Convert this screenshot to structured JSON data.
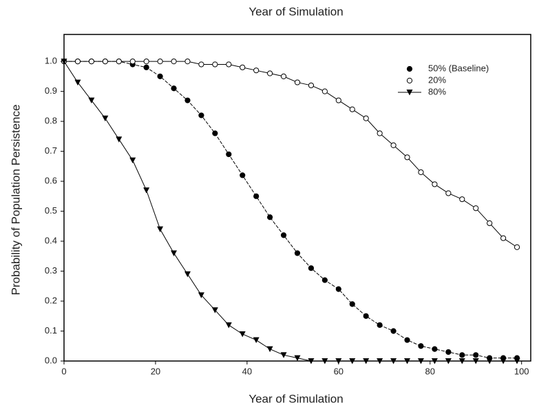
{
  "chart_data": {
    "type": "line",
    "title": "Year of Simulation",
    "x_label": "Year of Simulation",
    "y_label": "Probability of Population Persistence",
    "x": [
      0,
      3,
      6,
      9,
      12,
      15,
      18,
      21,
      24,
      27,
      30,
      33,
      36,
      39,
      42,
      45,
      48,
      51,
      54,
      57,
      60,
      63,
      66,
      69,
      72,
      75,
      78,
      81,
      84,
      87,
      90,
      93,
      96,
      99
    ],
    "series": [
      {
        "name": "50% (Baseline)",
        "color": "#000000",
        "marker": "circle-filled",
        "values": [
          1.0,
          1.0,
          1.0,
          1.0,
          1.0,
          0.99,
          0.98,
          0.95,
          0.91,
          0.87,
          0.82,
          0.76,
          0.69,
          0.62,
          0.55,
          0.48,
          0.42,
          0.36,
          0.31,
          0.27,
          0.24,
          0.19,
          0.15,
          0.12,
          0.1,
          0.07,
          0.05,
          0.04,
          0.03,
          0.02,
          0.02,
          0.01,
          0.01,
          0.01
        ]
      },
      {
        "name": "20%",
        "color": "#000000",
        "marker": "circle-open",
        "values": [
          1.0,
          1.0,
          1.0,
          1.0,
          1.0,
          1.0,
          1.0,
          1.0,
          1.0,
          1.0,
          0.99,
          0.99,
          0.99,
          0.98,
          0.97,
          0.96,
          0.95,
          0.93,
          0.92,
          0.9,
          0.87,
          0.84,
          0.81,
          0.76,
          0.72,
          0.68,
          0.63,
          0.59,
          0.56,
          0.54,
          0.51,
          0.46,
          0.41,
          0.38
        ]
      },
      {
        "name": "80%",
        "color": "#000000",
        "marker": "triangle-down",
        "values": [
          1.0,
          0.93,
          0.87,
          0.81,
          0.74,
          0.67,
          0.57,
          0.44,
          0.36,
          0.29,
          0.22,
          0.17,
          0.12,
          0.09,
          0.07,
          0.04,
          0.02,
          0.01,
          0.0,
          0.0,
          0.0,
          0.0,
          0.0,
          0.0,
          0.0,
          0.0,
          0.0,
          0.0,
          0.0,
          0.0,
          0.0,
          0.0,
          0.0,
          0.0
        ]
      }
    ],
    "xlim": [
      0,
      102
    ],
    "xticks": [
      0,
      20,
      40,
      60,
      80,
      100
    ],
    "ylim": [
      0,
      1.09
    ],
    "yticks": [
      {
        "value": 0,
        "label": "0.0"
      },
      0.1,
      0.2,
      0.3,
      0.4,
      0.5,
      0.6,
      0.7,
      0.8,
      0.9,
      {
        "value": 1,
        "label": "1.0"
      }
    ],
    "grid": false,
    "legend": "upper right"
  }
}
